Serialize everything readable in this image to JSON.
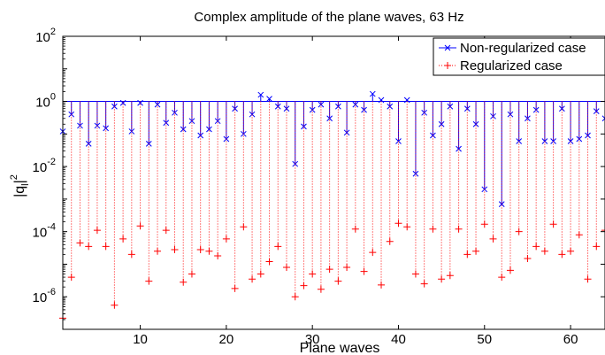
{
  "chart_data": {
    "type": "scatter",
    "title": "Complex amplitude of the plane waves, 63 Hz",
    "xlabel": "Plane waves",
    "ylabel_base": "|q",
    "ylabel_sub": "l",
    "ylabel_close": "|",
    "ylabel_exp": "2",
    "xlim": [
      1,
      64
    ],
    "ylim": [
      1e-07,
      100
    ],
    "y_scale": "log",
    "x_ticks": [
      10,
      20,
      30,
      40,
      50,
      60
    ],
    "y_ticks": [
      {
        "exponent": -6,
        "base": "10",
        "exp": "-6"
      },
      {
        "exponent": -4,
        "base": "10",
        "exp": "-4"
      },
      {
        "exponent": -2,
        "base": "10",
        "exp": "-2"
      },
      {
        "exponent": 0,
        "base": "10",
        "exp": "0"
      },
      {
        "exponent": 2,
        "base": "10",
        "exp": "2"
      }
    ],
    "stem_baseline": 1,
    "legend": {
      "position": "top-right"
    },
    "series": [
      {
        "name": "Non-regularized case",
        "marker": "x",
        "color": "#0000ff",
        "x": [
          1,
          2,
          3,
          4,
          5,
          6,
          7,
          8,
          9,
          10,
          11,
          12,
          13,
          14,
          15,
          16,
          17,
          18,
          19,
          20,
          21,
          22,
          23,
          24,
          25,
          26,
          27,
          28,
          29,
          30,
          31,
          32,
          33,
          34,
          35,
          36,
          37,
          38,
          39,
          40,
          41,
          42,
          43,
          44,
          45,
          46,
          47,
          48,
          49,
          50,
          51,
          52,
          53,
          54,
          55,
          56,
          57,
          58,
          59,
          60,
          61,
          62,
          63,
          64
        ],
        "values": [
          0.12,
          0.4,
          0.18,
          0.05,
          0.18,
          0.15,
          0.7,
          0.9,
          0.12,
          0.9,
          0.05,
          0.8,
          0.22,
          0.45,
          0.14,
          0.25,
          0.09,
          0.14,
          0.25,
          0.07,
          0.6,
          0.1,
          0.4,
          1.6,
          1.2,
          0.7,
          0.6,
          0.012,
          0.17,
          0.55,
          0.8,
          0.3,
          0.7,
          0.11,
          0.8,
          0.55,
          1.7,
          1.1,
          0.7,
          0.06,
          1.1,
          0.006,
          0.45,
          0.09,
          0.2,
          0.7,
          0.035,
          0.6,
          0.2,
          0.002,
          0.35,
          0.0007,
          0.4,
          0.06,
          0.3,
          0.55,
          0.06,
          0.06,
          0.6,
          0.06,
          0.07,
          0.09,
          0.5,
          0.3
        ]
      },
      {
        "name": "Regularized case",
        "marker": "+",
        "color": "#ff0000",
        "x": [
          1,
          2,
          3,
          4,
          5,
          6,
          7,
          8,
          9,
          10,
          11,
          12,
          13,
          14,
          15,
          16,
          17,
          18,
          19,
          20,
          21,
          22,
          23,
          24,
          25,
          26,
          27,
          28,
          29,
          30,
          31,
          32,
          33,
          34,
          35,
          36,
          37,
          38,
          39,
          40,
          41,
          42,
          43,
          44,
          45,
          46,
          47,
          48,
          49,
          50,
          51,
          52,
          53,
          54,
          55,
          56,
          57,
          58,
          59,
          60,
          61,
          62,
          63,
          64
        ],
        "values": [
          2.2e-07,
          4e-06,
          4.5e-05,
          3.5e-05,
          0.00011,
          3.5e-05,
          5.5e-07,
          6e-05,
          2e-05,
          0.00015,
          3e-06,
          2.5e-05,
          0.00011,
          2.8e-05,
          2.8e-06,
          5e-06,
          2.8e-05,
          2.5e-05,
          1.8e-05,
          6e-05,
          1.8e-06,
          0.00014,
          3.5e-06,
          5e-06,
          1.2e-05,
          3.5e-05,
          8e-06,
          1e-06,
          2.2e-06,
          5e-06,
          1.7e-06,
          7e-06,
          3e-06,
          8e-06,
          0.00012,
          6e-06,
          2.3e-05,
          2.3e-06,
          5e-05,
          0.00018,
          0.00014,
          5e-06,
          2.5e-06,
          0.00012,
          3.5e-06,
          4.5e-06,
          0.00012,
          2e-05,
          2.5e-05,
          0.00017,
          6e-05,
          4e-06,
          6.5e-06,
          0.0001,
          1.5e-05,
          3.5e-05,
          2.5e-05,
          0.00017,
          2e-05,
          2.5e-05,
          8e-05,
          3.5e-06,
          3.5e-05,
          0.00011
        ]
      }
    ]
  }
}
